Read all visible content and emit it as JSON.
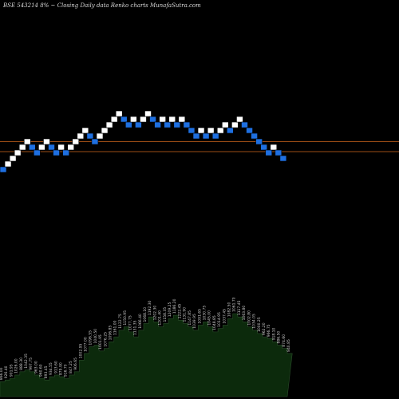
{
  "header": {
    "text": "BSE 543214  8% ~ Closing Daily data  Renko  charts MunafaSutra.com"
  },
  "colors": {
    "background": "#000000",
    "up_brick": "#ffffff",
    "down_brick": "#1e6fe0",
    "reference_line": "#d2691e",
    "volume_fill": "#0c2a0c",
    "volume_edge": "#2b4d2b",
    "volume_label": "#d0d0d0"
  },
  "chart_data": {
    "type": "renko",
    "reference_lines": [
      1.2,
      0
    ],
    "bricks": [
      {
        "level": -3,
        "dir": "down"
      },
      {
        "level": -2,
        "dir": "up"
      },
      {
        "level": -1,
        "dir": "up"
      },
      {
        "level": 0,
        "dir": "up"
      },
      {
        "level": 1,
        "dir": "up"
      },
      {
        "level": 2,
        "dir": "up"
      },
      {
        "level": 1,
        "dir": "down"
      },
      {
        "level": 0,
        "dir": "down"
      },
      {
        "level": 1,
        "dir": "up"
      },
      {
        "level": 2,
        "dir": "up"
      },
      {
        "level": 1,
        "dir": "down"
      },
      {
        "level": 0,
        "dir": "down"
      },
      {
        "level": 1,
        "dir": "up"
      },
      {
        "level": 0,
        "dir": "down"
      },
      {
        "level": 1,
        "dir": "up"
      },
      {
        "level": 2,
        "dir": "up"
      },
      {
        "level": 3,
        "dir": "up"
      },
      {
        "level": 4,
        "dir": "up"
      },
      {
        "level": 3,
        "dir": "down"
      },
      {
        "level": 2,
        "dir": "down"
      },
      {
        "level": 3,
        "dir": "up"
      },
      {
        "level": 4,
        "dir": "up"
      },
      {
        "level": 5,
        "dir": "up"
      },
      {
        "level": 6,
        "dir": "up"
      },
      {
        "level": 7,
        "dir": "up"
      },
      {
        "level": 6,
        "dir": "down"
      },
      {
        "level": 5,
        "dir": "down"
      },
      {
        "level": 6,
        "dir": "up"
      },
      {
        "level": 5,
        "dir": "down"
      },
      {
        "level": 6,
        "dir": "up"
      },
      {
        "level": 7,
        "dir": "up"
      },
      {
        "level": 6,
        "dir": "down"
      },
      {
        "level": 5,
        "dir": "down"
      },
      {
        "level": 6,
        "dir": "up"
      },
      {
        "level": 5,
        "dir": "down"
      },
      {
        "level": 6,
        "dir": "up"
      },
      {
        "level": 5,
        "dir": "down"
      },
      {
        "level": 6,
        "dir": "up"
      },
      {
        "level": 5,
        "dir": "down"
      },
      {
        "level": 4,
        "dir": "down"
      },
      {
        "level": 3,
        "dir": "down"
      },
      {
        "level": 4,
        "dir": "up"
      },
      {
        "level": 3,
        "dir": "down"
      },
      {
        "level": 4,
        "dir": "up"
      },
      {
        "level": 3,
        "dir": "down"
      },
      {
        "level": 4,
        "dir": "up"
      },
      {
        "level": 5,
        "dir": "up"
      },
      {
        "level": 4,
        "dir": "down"
      },
      {
        "level": 5,
        "dir": "up"
      },
      {
        "level": 6,
        "dir": "up"
      },
      {
        "level": 5,
        "dir": "down"
      },
      {
        "level": 4,
        "dir": "down"
      },
      {
        "level": 3,
        "dir": "down"
      },
      {
        "level": 2,
        "dir": "down"
      },
      {
        "level": 1,
        "dir": "down"
      },
      {
        "level": 0,
        "dir": "down"
      },
      {
        "level": 1,
        "dir": "up"
      },
      {
        "level": 0,
        "dir": "down"
      },
      {
        "level": -1,
        "dir": "down"
      }
    ],
    "volume": [
      18,
      20,
      22,
      26,
      30,
      32,
      30,
      26,
      22,
      20,
      24,
      26,
      24,
      22,
      26,
      30,
      44,
      52,
      60,
      62,
      55,
      58,
      66,
      72,
      80,
      84,
      78,
      72,
      80,
      88,
      96,
      90,
      84,
      88,
      94,
      98,
      92,
      88,
      84,
      80,
      86,
      90,
      84,
      78,
      82,
      86,
      94,
      100,
      96,
      90,
      84,
      80,
      76,
      72,
      70,
      66,
      62,
      58,
      52
    ],
    "volume_labels": [
      "866.00",
      "926.40",
      "901.95",
      "1026.00",
      "888.30",
      "1042.35",
      "997.75",
      "963.00",
      "960.60",
      "893.45",
      "934.55",
      "913.60",
      "879.90",
      "916.70",
      "847.25",
      "906.65",
      "1002.95",
      "1077.00",
      "1096.55",
      "1040.50",
      "1001.95",
      "1076.25",
      "1096.85",
      "1161.00",
      "1122.75",
      "1150.95",
      "1077.75",
      "1131.35",
      "1066.40",
      "1068.10",
      "1192.30",
      "1202.30",
      "1201.40",
      "1158.35",
      "1209.25",
      "1186.20",
      "1222.45",
      "1131.90",
      "1147.85",
      "1039.95",
      "1091.65",
      "1030.75",
      "1045.00",
      "1048.85",
      "1014.95",
      "1037.45",
      "1082.50",
      "1061.70",
      "1117.45",
      "1063.80",
      "1002.80",
      "1034.05",
      "1000.25",
      "962.20",
      "966.75",
      "918.10",
      "886.50",
      "874.60",
      "840.85"
    ]
  }
}
